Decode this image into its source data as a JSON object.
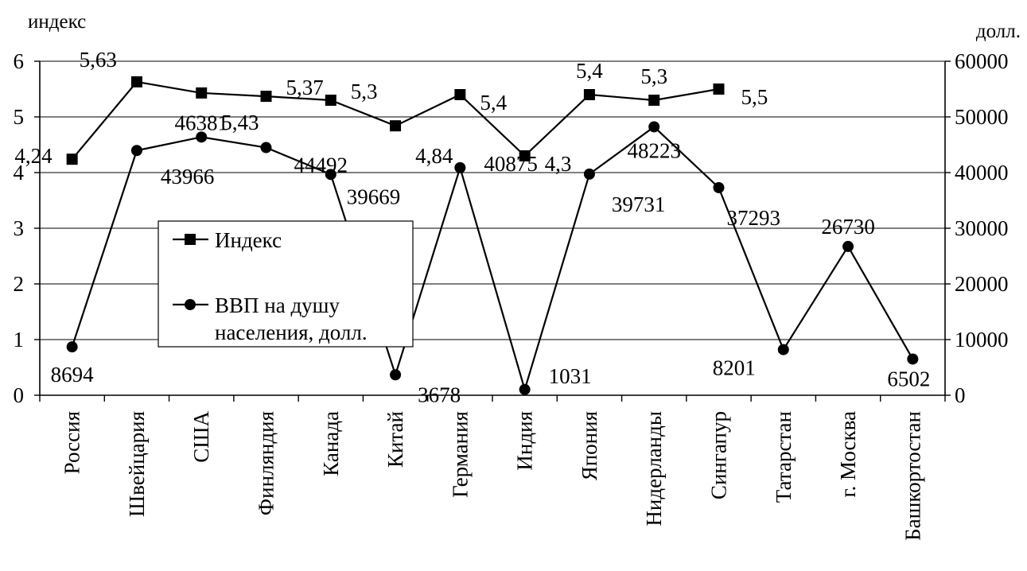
{
  "chart_data": {
    "type": "line",
    "title": "",
    "y_left_label": "индекс",
    "y_right_label": "долл.",
    "y_left_lim": [
      0,
      6
    ],
    "y_left_ticks": [
      "0",
      "1",
      "2",
      "3",
      "4",
      "5",
      "6"
    ],
    "y_right_lim": [
      0,
      60000
    ],
    "y_right_ticks": [
      "0",
      "10000",
      "20000",
      "30000",
      "40000",
      "50000",
      "60000"
    ],
    "grid": true,
    "legend_position": "center-left",
    "categories": [
      "Россия",
      "Швейцария",
      "США",
      "Финляндия",
      "Канада",
      "Китай",
      "Германия",
      "Индия",
      "Япония",
      "Нидерланды",
      "Сингапур",
      "Татарстан",
      "г. Москва",
      "Башкортостан"
    ],
    "series": [
      {
        "name": "Индекс",
        "axis": "left",
        "marker": "square",
        "values": [
          4.24,
          5.63,
          5.43,
          5.37,
          5.3,
          4.84,
          5.4,
          4.3,
          5.4,
          5.3,
          5.5,
          null,
          null,
          null
        ],
        "labels": [
          "4,24",
          "5,63",
          "5,43",
          "5,37",
          "5,3",
          "4,84",
          "5,4",
          "4,3",
          "5,4",
          "5,3",
          "5,5",
          null,
          null,
          null
        ]
      },
      {
        "name": "ВВП на душу населения, долл.",
        "axis": "right",
        "marker": "circle",
        "values": [
          8694,
          43966,
          46381,
          44492,
          39669,
          3678,
          40875,
          1031,
          39731,
          48223,
          37293,
          8201,
          26730,
          6502
        ],
        "labels": [
          "8694",
          "43966",
          "46381",
          "44492",
          "39669",
          "3678",
          "40875",
          "1031",
          "39731",
          "48223",
          "37293",
          "8201",
          "26730",
          "6502"
        ]
      }
    ],
    "legend": {
      "line1": "Индекс",
      "line2a": "ВВП на душу",
      "line2b": "населения, долл."
    }
  }
}
